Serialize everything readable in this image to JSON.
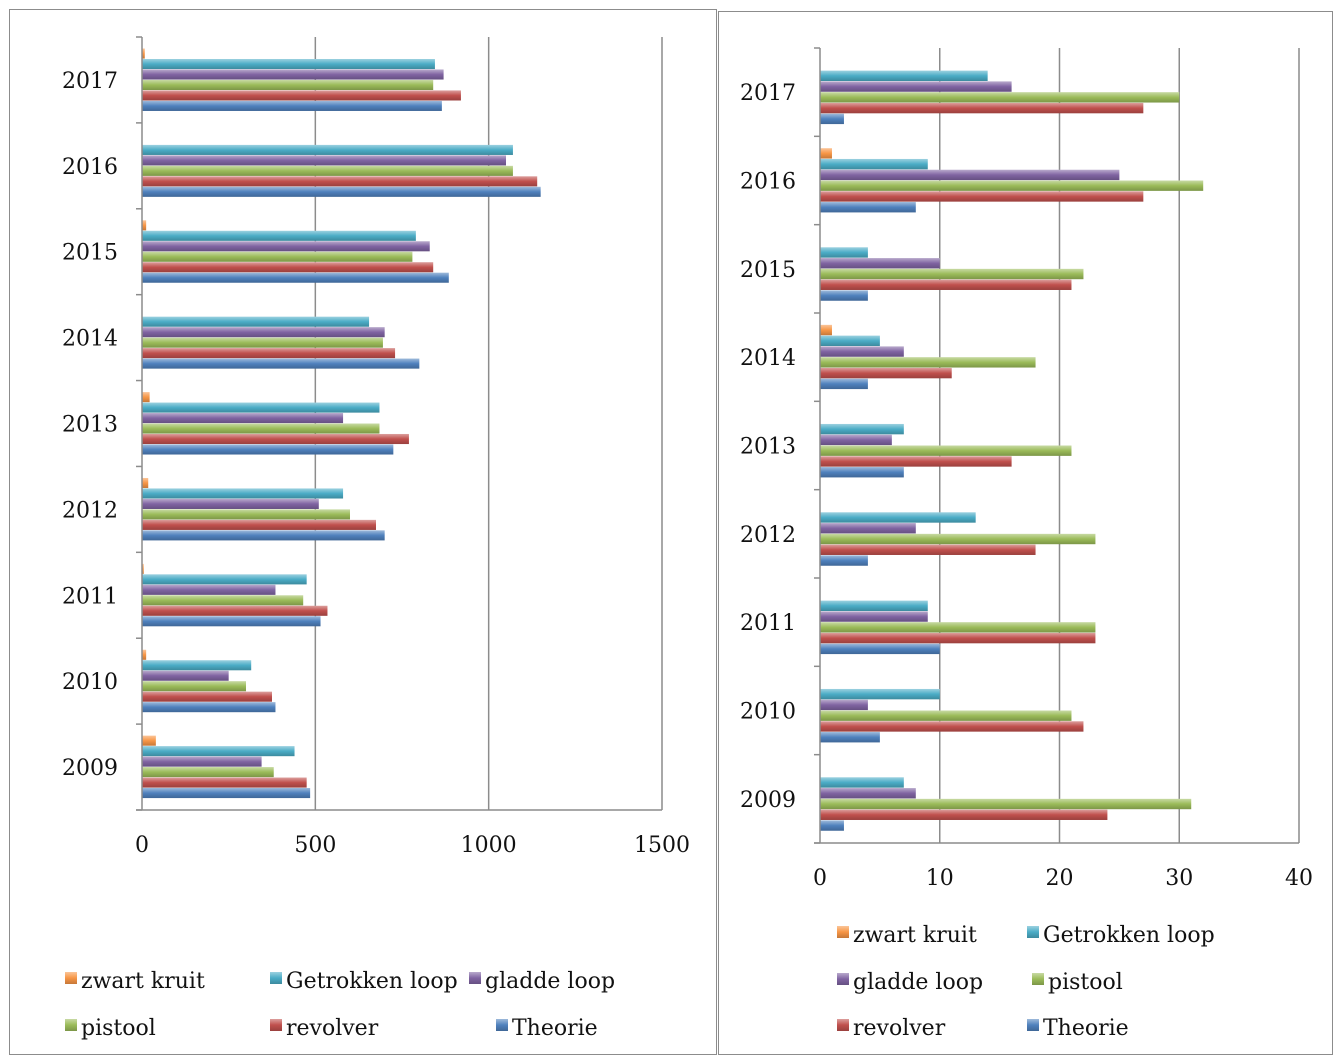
{
  "colors": {
    "zwart kruit": "#f79646",
    "Getrokken loop": "#4bacc6",
    "gladde loop": "#8064a2",
    "pistool": "#9bbb59",
    "revolver": "#c0504d",
    "Theorie": "#4f81bd"
  },
  "chart_data": [
    {
      "type": "bar",
      "orientation": "horizontal",
      "title": "",
      "xlabel": "",
      "ylabel": "",
      "categories": [
        "2009",
        "2010",
        "2011",
        "2012",
        "2013",
        "2014",
        "2015",
        "2016",
        "2017"
      ],
      "xlim": [
        0,
        1500
      ],
      "xticks": [
        "0",
        "500",
        "1000",
        "1500"
      ],
      "grid": true,
      "legend_position": "bottom",
      "legend_labels": [
        "zwart kruit",
        "Getrokken loop",
        "gladde loop",
        "pistool",
        "revolver",
        "Theorie"
      ],
      "series": [
        {
          "name": "Theorie",
          "values": [
            485,
            385,
            515,
            700,
            725,
            800,
            885,
            1150,
            865
          ]
        },
        {
          "name": "revolver",
          "values": [
            475,
            375,
            535,
            675,
            770,
            730,
            840,
            1140,
            920
          ]
        },
        {
          "name": "pistool",
          "values": [
            380,
            300,
            465,
            600,
            685,
            695,
            780,
            1070,
            840
          ]
        },
        {
          "name": "gladde loop",
          "values": [
            345,
            250,
            385,
            510,
            580,
            700,
            830,
            1050,
            870
          ]
        },
        {
          "name": "Getrokken loop",
          "values": [
            440,
            315,
            475,
            580,
            685,
            655,
            790,
            1070,
            845
          ]
        },
        {
          "name": "zwart kruit",
          "values": [
            40,
            12,
            5,
            18,
            22,
            0,
            12,
            0,
            8
          ]
        }
      ]
    },
    {
      "type": "bar",
      "orientation": "horizontal",
      "title": "",
      "xlabel": "",
      "ylabel": "",
      "categories": [
        "2009",
        "2010",
        "2011",
        "2012",
        "2013",
        "2014",
        "2015",
        "2016",
        "2017"
      ],
      "xlim": [
        0,
        40
      ],
      "xticks": [
        "0",
        "10",
        "20",
        "30",
        "40"
      ],
      "grid": true,
      "legend_position": "bottom",
      "legend_labels": [
        "zwart kruit",
        "Getrokken loop",
        "gladde loop",
        "pistool",
        "revolver",
        "Theorie"
      ],
      "series": [
        {
          "name": "Theorie",
          "values": [
            2,
            5,
            10,
            4,
            7,
            4,
            4,
            8,
            2
          ]
        },
        {
          "name": "revolver",
          "values": [
            24,
            22,
            23,
            18,
            16,
            11,
            21,
            27,
            27
          ]
        },
        {
          "name": "pistool",
          "values": [
            31,
            21,
            23,
            23,
            21,
            18,
            22,
            32,
            30
          ]
        },
        {
          "name": "gladde loop",
          "values": [
            8,
            4,
            9,
            8,
            6,
            7,
            10,
            25,
            16
          ]
        },
        {
          "name": "Getrokken loop",
          "values": [
            7,
            10,
            9,
            13,
            7,
            5,
            4,
            9,
            14
          ]
        },
        {
          "name": "zwart kruit",
          "values": [
            0,
            0,
            0,
            0,
            0,
            1,
            0,
            1,
            0
          ]
        }
      ]
    }
  ]
}
